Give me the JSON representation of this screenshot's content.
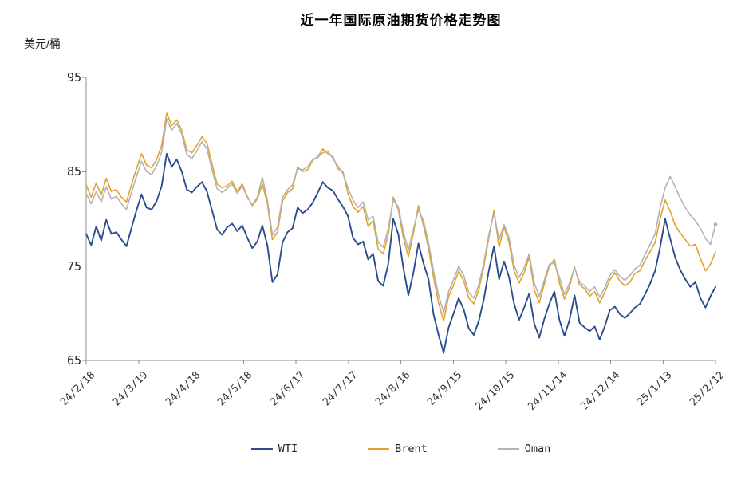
{
  "chart_data": {
    "type": "line",
    "title": "近一年国际原油期货价格走势图",
    "ylabel": "美元/桶",
    "xlabel": "",
    "ylim": [
      65,
      95
    ],
    "y_ticks": [
      95,
      85,
      75,
      65
    ],
    "grid": false,
    "legend_position": "bottom",
    "axis_color": "#8c8c8c",
    "x_tick_labels": [
      "24/2/18",
      "24/3/19",
      "24/4/18",
      "24/5/18",
      "24/6/17",
      "24/7/17",
      "24/8/16",
      "24/9/15",
      "24/10/15",
      "24/11/14",
      "24/12/14",
      "25/1/13",
      "25/2/12"
    ],
    "series": [
      {
        "name": "WTI",
        "color": "#2B4D8C",
        "values": [
          78.4,
          77.2,
          79.2,
          77.7,
          79.9,
          78.4,
          78.6,
          77.8,
          77.1,
          79.0,
          80.9,
          82.6,
          81.2,
          81.0,
          81.9,
          83.5,
          86.9,
          85.5,
          86.3,
          85.0,
          83.1,
          82.8,
          83.4,
          83.9,
          82.9,
          80.9,
          78.9,
          78.3,
          79.1,
          79.5,
          78.7,
          79.3,
          78.0,
          76.9,
          77.6,
          79.3,
          77.2,
          73.3,
          74.1,
          77.5,
          78.6,
          79.0,
          81.2,
          80.6,
          81.0,
          81.7,
          82.8,
          83.9,
          83.3,
          83.0,
          82.1,
          81.3,
          80.3,
          78.0,
          77.3,
          77.6,
          75.7,
          76.3,
          73.4,
          72.9,
          75.2,
          80.0,
          78.4,
          74.8,
          71.9,
          74.3,
          77.4,
          75.3,
          73.6,
          69.9,
          67.7,
          65.8,
          68.5,
          70.0,
          71.6,
          70.4,
          68.4,
          67.7,
          69.2,
          71.5,
          74.6,
          77.1,
          73.6,
          75.5,
          73.8,
          71.0,
          69.3,
          70.6,
          72.1,
          68.9,
          67.4,
          69.4,
          71.0,
          72.3,
          69.3,
          67.6,
          69.3,
          71.9,
          69.0,
          68.5,
          68.1,
          68.6,
          67.2,
          68.6,
          70.3,
          70.7,
          69.9,
          69.5,
          70.0,
          70.6,
          71.0,
          72.0,
          73.1,
          74.5,
          77.0,
          80.0,
          77.9,
          75.9,
          74.6,
          73.6,
          72.8,
          73.3,
          71.6,
          70.6,
          71.8,
          72.8
        ]
      },
      {
        "name": "Brent",
        "color": "#E0A32E",
        "values": [
          83.6,
          82.3,
          83.8,
          82.5,
          84.3,
          82.9,
          83.1,
          82.3,
          81.8,
          83.6,
          85.3,
          86.9,
          85.7,
          85.4,
          86.3,
          87.8,
          91.2,
          89.9,
          90.5,
          89.4,
          87.3,
          87.0,
          87.8,
          88.7,
          88.0,
          85.8,
          83.7,
          83.3,
          83.5,
          84.0,
          82.9,
          83.7,
          82.4,
          81.4,
          82.1,
          83.7,
          81.6,
          77.8,
          78.6,
          81.9,
          82.8,
          83.2,
          85.5,
          85.0,
          85.2,
          86.2,
          86.6,
          87.4,
          86.9,
          86.6,
          85.3,
          85.0,
          82.7,
          81.3,
          80.7,
          81.3,
          79.2,
          79.8,
          76.8,
          76.3,
          78.3,
          82.3,
          81.0,
          78.0,
          76.0,
          78.5,
          81.4,
          79.3,
          76.9,
          73.8,
          71.1,
          69.2,
          71.8,
          73.0,
          74.5,
          73.4,
          71.6,
          71.0,
          72.5,
          75.0,
          78.1,
          80.9,
          77.0,
          79.1,
          77.5,
          74.5,
          73.2,
          74.3,
          76.0,
          72.5,
          71.1,
          73.1,
          75.0,
          75.7,
          73.2,
          71.5,
          72.8,
          74.9,
          73.0,
          72.6,
          71.8,
          72.3,
          71.1,
          72.2,
          73.5,
          74.3,
          73.4,
          72.9,
          73.3,
          74.2,
          74.5,
          75.6,
          76.5,
          77.5,
          80.0,
          82.0,
          80.8,
          79.3,
          78.5,
          77.8,
          77.1,
          77.3,
          75.8,
          74.5,
          75.2,
          76.5
        ]
      },
      {
        "name": "Oman",
        "color": "#B3B3B3",
        "end_marker": true,
        "values": [
          82.7,
          81.6,
          82.9,
          81.8,
          83.4,
          82.1,
          82.4,
          81.6,
          81.0,
          82.8,
          84.5,
          86.1,
          85.0,
          84.7,
          85.6,
          87.1,
          90.6,
          89.4,
          90.1,
          89.0,
          86.8,
          86.4,
          87.2,
          88.2,
          87.4,
          85.2,
          83.2,
          82.8,
          83.2,
          83.7,
          82.7,
          83.5,
          82.3,
          81.5,
          82.3,
          84.4,
          82.0,
          78.3,
          79.1,
          82.3,
          83.1,
          83.6,
          85.3,
          85.2,
          85.5,
          86.3,
          86.5,
          87.0,
          87.2,
          86.4,
          85.6,
          84.8,
          83.3,
          82.0,
          81.2,
          81.8,
          79.9,
          80.3,
          77.5,
          77.0,
          78.9,
          82.0,
          81.3,
          78.6,
          76.7,
          78.9,
          81.0,
          79.8,
          77.5,
          74.5,
          71.9,
          70.1,
          72.3,
          73.6,
          75.0,
          74.0,
          72.2,
          71.6,
          73.0,
          75.4,
          78.4,
          80.6,
          77.8,
          79.4,
          78.0,
          75.1,
          73.8,
          74.8,
          76.3,
          73.2,
          71.8,
          73.5,
          75.2,
          75.3,
          73.8,
          72.0,
          73.2,
          74.8,
          73.3,
          72.9,
          72.3,
          72.8,
          71.7,
          72.7,
          74.0,
          74.6,
          73.9,
          73.5,
          74.0,
          74.7,
          75.1,
          76.2,
          77.3,
          78.4,
          81.2,
          83.3,
          84.5,
          83.4,
          82.2,
          81.2,
          80.4,
          79.8,
          79.0,
          77.9,
          77.3,
          79.4
        ]
      }
    ]
  }
}
